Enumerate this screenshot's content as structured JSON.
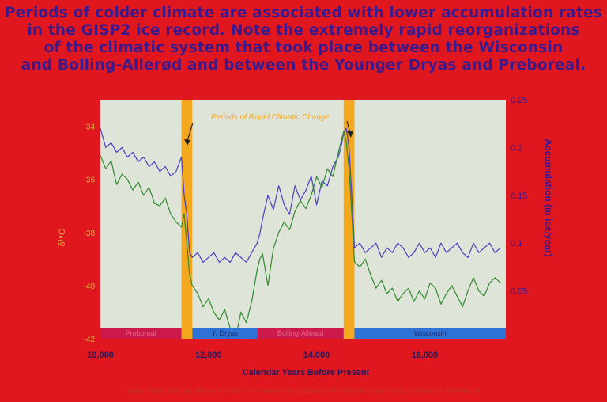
{
  "heading": {
    "line1": "Periods of colder climate are associated with lower accumulation rates",
    "line2": "in the GISP2 ice record.  Note the extremely rapid reorganizations",
    "line3": "of the climatic system that took place between the Wisconsin",
    "line4": "and Bolling-Allerød and between the Younger Dryas and Preboreal."
  },
  "credit": "Accumulation data from Alley et al. (Penn State University); oxygen isotope data from Grootes et al. (University of Washington)",
  "colors": {
    "background": "#e0171f",
    "plot_bg": "#dfe4d8",
    "accumulation": "#4a3fc4",
    "isotope": "#2e8b2e",
    "highlight": "#f4a81d",
    "label_purple": "#3c1a8c",
    "label_yellow": "#d9b23a",
    "period_red": "#cc1a4a",
    "period_blue": "#2f72d6"
  },
  "chart_data": {
    "type": "line",
    "xlabel": "Calendar Years Before Present",
    "xlim": [
      10000,
      17500
    ],
    "x_ticks": [
      "10,000",
      "12,000",
      "14,000",
      "16,000"
    ],
    "x_tick_values": [
      10000,
      12000,
      14000,
      16000
    ],
    "y2label": "Accumulation (m ice/year)",
    "y2lim": [
      0,
      0.25
    ],
    "y2_ticks": [
      "0.05",
      "0.1",
      "0.15",
      "0.2",
      "0.25"
    ],
    "y2_tick_values": [
      0.05,
      0.1,
      0.15,
      0.2,
      0.25
    ],
    "ylabel": "δ¹⁸O",
    "ylim": [
      -42,
      -33
    ],
    "y_ticks": [
      "-34",
      "-36",
      "-38",
      "-40",
      "-42"
    ],
    "y_tick_values": [
      -34,
      -36,
      -38,
      -40,
      -42
    ],
    "annotation": "Periods of Rapid Climatic Change",
    "rapid_change_bands": [
      [
        11500,
        11700
      ],
      [
        14500,
        14700
      ]
    ],
    "periods": [
      {
        "name": "Preboreal",
        "start": 10000,
        "end": 11500,
        "color": "red"
      },
      {
        "name": "Y. Dryas",
        "start": 11700,
        "end": 12900,
        "color": "blue"
      },
      {
        "name": "Bolling-Allerød",
        "start": 12900,
        "end": 14500,
        "color": "red"
      },
      {
        "name": "Wisconsin",
        "start": 14700,
        "end": 17500,
        "color": "blue"
      }
    ],
    "series": [
      {
        "name": "Accumulation",
        "axis": "right",
        "x": [
          10000,
          10100,
          10200,
          10300,
          10400,
          10500,
          10600,
          10700,
          10800,
          10900,
          11000,
          11100,
          11200,
          11300,
          11400,
          11500,
          11550,
          11600,
          11650,
          11700,
          11800,
          11900,
          12000,
          12100,
          12200,
          12300,
          12400,
          12500,
          12600,
          12700,
          12800,
          12900,
          12950,
          13000,
          13100,
          13200,
          13300,
          13400,
          13500,
          13600,
          13700,
          13800,
          13900,
          14000,
          14100,
          14200,
          14300,
          14400,
          14450,
          14500,
          14550,
          14600,
          14650,
          14700,
          14800,
          14900,
          15000,
          15100,
          15200,
          15300,
          15400,
          15500,
          15600,
          15700,
          15800,
          15900,
          16000,
          16100,
          16200,
          16300,
          16400,
          16500,
          16600,
          16700,
          16800,
          16900,
          17000,
          17100,
          17200,
          17300,
          17400
        ],
        "values": [
          0.22,
          0.2,
          0.205,
          0.195,
          0.2,
          0.19,
          0.195,
          0.185,
          0.19,
          0.18,
          0.185,
          0.175,
          0.18,
          0.17,
          0.175,
          0.19,
          0.15,
          0.13,
          0.09,
          0.085,
          0.09,
          0.08,
          0.085,
          0.09,
          0.08,
          0.085,
          0.08,
          0.09,
          0.085,
          0.08,
          0.09,
          0.1,
          0.11,
          0.125,
          0.15,
          0.135,
          0.16,
          0.14,
          0.13,
          0.16,
          0.145,
          0.155,
          0.17,
          0.14,
          0.165,
          0.16,
          0.18,
          0.19,
          0.2,
          0.215,
          0.22,
          0.2,
          0.15,
          0.095,
          0.1,
          0.09,
          0.095,
          0.1,
          0.085,
          0.095,
          0.09,
          0.1,
          0.095,
          0.085,
          0.09,
          0.1,
          0.09,
          0.095,
          0.085,
          0.1,
          0.09,
          0.095,
          0.1,
          0.09,
          0.085,
          0.1,
          0.09,
          0.095,
          0.1,
          0.09,
          0.095
        ]
      },
      {
        "name": "Oxygen isotope",
        "axis": "left",
        "x": [
          10000,
          10100,
          10200,
          10300,
          10400,
          10500,
          10600,
          10700,
          10800,
          10900,
          11000,
          11100,
          11200,
          11300,
          11400,
          11500,
          11550,
          11600,
          11650,
          11700,
          11800,
          11900,
          12000,
          12100,
          12200,
          12300,
          12400,
          12500,
          12600,
          12700,
          12800,
          12900,
          12950,
          13000,
          13100,
          13200,
          13300,
          13400,
          13500,
          13600,
          13700,
          13800,
          13900,
          14000,
          14100,
          14200,
          14300,
          14400,
          14450,
          14500,
          14550,
          14600,
          14650,
          14700,
          14800,
          14900,
          15000,
          15100,
          15200,
          15300,
          15400,
          15500,
          15600,
          15700,
          15800,
          15900,
          16000,
          16100,
          16200,
          16300,
          16400,
          16500,
          16600,
          16700,
          16800,
          16900,
          17000,
          17100,
          17200,
          17300,
          17400
        ],
        "values": [
          -35.1,
          -35.6,
          -35.3,
          -36.2,
          -35.8,
          -36.0,
          -36.4,
          -36.1,
          -36.6,
          -36.3,
          -36.9,
          -37.0,
          -36.7,
          -37.3,
          -37.6,
          -37.8,
          -37.3,
          -38.4,
          -39.6,
          -40.0,
          -40.3,
          -40.8,
          -40.5,
          -41.0,
          -41.3,
          -40.9,
          -41.6,
          -42.2,
          -41.0,
          -41.4,
          -40.6,
          -39.4,
          -39.0,
          -38.8,
          -40.0,
          -38.6,
          -38.0,
          -37.6,
          -37.9,
          -37.2,
          -36.8,
          -37.1,
          -36.6,
          -35.9,
          -36.3,
          -35.6,
          -35.9,
          -35.0,
          -34.6,
          -34.2,
          -34.6,
          -35.6,
          -37.3,
          -39.1,
          -39.3,
          -39.0,
          -39.6,
          -40.1,
          -39.8,
          -40.3,
          -40.1,
          -40.6,
          -40.3,
          -40.1,
          -40.6,
          -40.2,
          -40.5,
          -39.9,
          -40.1,
          -40.7,
          -40.3,
          -40.0,
          -40.4,
          -40.8,
          -40.2,
          -39.7,
          -40.2,
          -40.4,
          -39.9,
          -39.7,
          -39.9
        ]
      }
    ]
  }
}
